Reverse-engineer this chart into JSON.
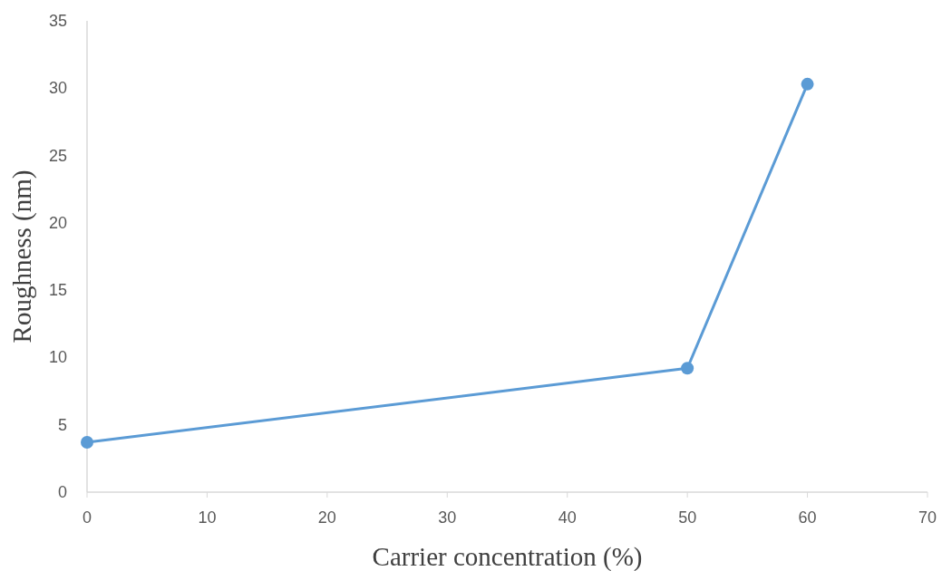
{
  "chart_data": {
    "type": "line",
    "xlabel": "Carrier concentration (%)",
    "ylabel": "Roughness (nm)",
    "x": [
      0,
      50,
      60
    ],
    "series": [
      {
        "color": "#5b9bd5",
        "values": [
          3.7,
          9.2,
          30.3
        ]
      }
    ],
    "xlim": [
      0,
      70
    ],
    "xticks": [
      0,
      10,
      20,
      30,
      40,
      50,
      60,
      70
    ],
    "ylim": [
      0,
      35
    ],
    "yticks": [
      0,
      5,
      10,
      15,
      20,
      25,
      30,
      35
    ],
    "grid": false,
    "marker": "circle",
    "line_style": "solid"
  }
}
